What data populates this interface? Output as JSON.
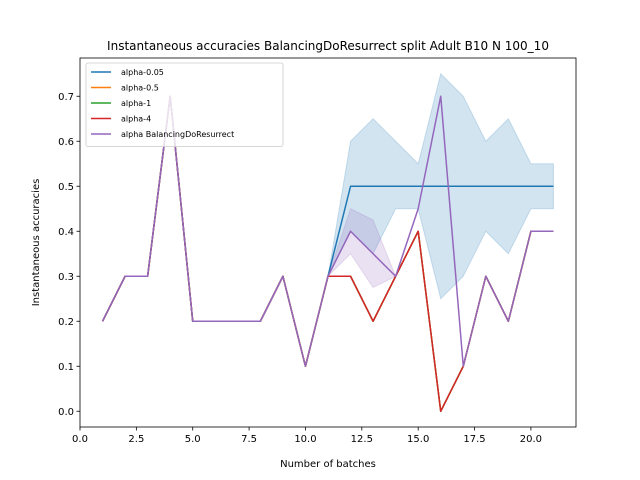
{
  "chart_data": {
    "type": "line",
    "title": "Instantaneous accuracies BalancingDoResurrect split Adult B10 N 100_10",
    "xlabel": "Number of batches",
    "ylabel": "Instantaneous accuracies",
    "xlim": [
      0,
      22
    ],
    "ylim": [
      -0.035,
      0.785
    ],
    "xticks": [
      0.0,
      2.5,
      5.0,
      7.5,
      10.0,
      12.5,
      15.0,
      17.5,
      20.0
    ],
    "xtick_labels": [
      "0.0",
      "2.5",
      "5.0",
      "7.5",
      "10.0",
      "12.5",
      "15.0",
      "17.5",
      "20.0"
    ],
    "yticks": [
      0.0,
      0.1,
      0.2,
      0.3,
      0.4,
      0.5,
      0.6,
      0.7
    ],
    "ytick_labels": [
      "0.0",
      "0.1",
      "0.2",
      "0.3",
      "0.4",
      "0.5",
      "0.6",
      "0.7"
    ],
    "legend_position": "top-left",
    "grid": false,
    "x": [
      1,
      2,
      3,
      4,
      5,
      6,
      7,
      8,
      9,
      10,
      11,
      12,
      13,
      14,
      15,
      16,
      17,
      18,
      19,
      20,
      21
    ],
    "series": [
      {
        "name": "alpha-0.05",
        "color": "#1f77b4",
        "values": [
          0.2,
          0.3,
          0.3,
          0.7,
          0.2,
          0.2,
          0.2,
          0.2,
          0.3,
          0.1,
          0.3,
          0.5,
          0.5,
          0.5,
          0.5,
          0.5,
          0.5,
          0.5,
          0.5,
          0.5,
          0.5
        ],
        "band_lower": [
          null,
          null,
          null,
          null,
          null,
          null,
          null,
          null,
          null,
          null,
          0.3,
          0.4,
          0.35,
          0.45,
          0.45,
          0.25,
          0.3,
          0.4,
          0.35,
          0.45,
          0.45
        ],
        "band_upper": [
          null,
          null,
          null,
          null,
          null,
          null,
          null,
          null,
          null,
          null,
          0.3,
          0.6,
          0.65,
          0.6,
          0.55,
          0.75,
          0.7,
          0.6,
          0.65,
          0.55,
          0.55
        ]
      },
      {
        "name": "alpha-0.5",
        "color": "#ff7f0e",
        "values": [
          0.2,
          0.3,
          0.3,
          0.7,
          0.2,
          0.2,
          0.2,
          0.2,
          0.3,
          0.1,
          0.3,
          0.3,
          0.2,
          0.3,
          0.4,
          0.0,
          0.1,
          0.3,
          0.2,
          0.4,
          0.4
        ]
      },
      {
        "name": "alpha-1",
        "color": "#2ca02c",
        "values": [
          0.2,
          0.3,
          0.3,
          0.7,
          0.2,
          0.2,
          0.2,
          0.2,
          0.3,
          0.1,
          0.3,
          0.3,
          0.2,
          0.3,
          0.4,
          0.0,
          0.1,
          0.3,
          0.2,
          0.4,
          0.4
        ]
      },
      {
        "name": "alpha-4",
        "color": "#d62728",
        "values": [
          0.2,
          0.3,
          0.3,
          0.7,
          0.2,
          0.2,
          0.2,
          0.2,
          0.3,
          0.1,
          0.3,
          0.3,
          0.2,
          0.3,
          0.4,
          0.0,
          0.1,
          0.3,
          0.2,
          0.4,
          0.4
        ]
      },
      {
        "name": "alpha BalancingDoResurrect",
        "color": "#9467bd",
        "values": [
          0.2,
          0.3,
          0.3,
          0.7,
          0.2,
          0.2,
          0.2,
          0.2,
          0.3,
          0.1,
          0.3,
          0.4,
          0.35,
          0.3,
          0.45,
          0.7,
          0.1,
          0.3,
          0.2,
          0.4,
          0.4
        ],
        "band_lower": [
          null,
          null,
          null,
          null,
          null,
          null,
          null,
          null,
          null,
          null,
          0.3,
          0.35,
          0.275,
          0.3,
          0.45,
          0.7,
          0.1,
          0.3,
          0.2,
          0.4,
          0.4
        ],
        "band_upper": [
          null,
          null,
          null,
          null,
          null,
          null,
          null,
          null,
          null,
          null,
          0.3,
          0.45,
          0.425,
          0.3,
          0.45,
          0.7,
          0.1,
          0.3,
          0.2,
          0.4,
          0.4
        ]
      }
    ]
  }
}
